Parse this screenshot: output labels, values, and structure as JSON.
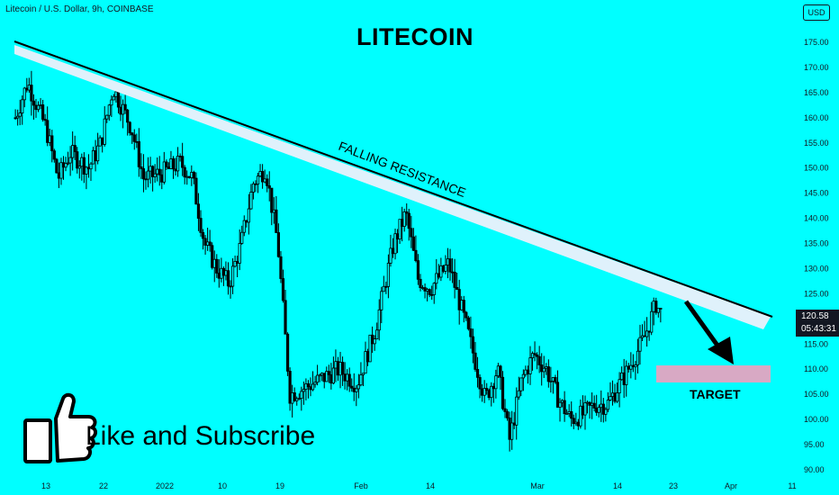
{
  "header": {
    "symbol": "Litecoin / U.S. Dollar, 9h, COINBASE",
    "currency": "USD"
  },
  "title": "LITECOIN",
  "cta": "Like and Subscribe",
  "annotations": {
    "resistance": "FALLING RESISTANCE",
    "target": "TARGET"
  },
  "price_tag": {
    "price": "120.58",
    "countdown": "05:43:31"
  },
  "colors": {
    "background": "#00ffff",
    "candle": "#000000",
    "resistance_band": "#dff1fb",
    "target_box": "#d8a9c4",
    "axis_text": "#131722"
  },
  "chart_data": {
    "type": "candlestick",
    "title": "LITECOIN",
    "y_axis": {
      "ticks": [
        175,
        170,
        165,
        160,
        155,
        150,
        145,
        140,
        135,
        130,
        125,
        120,
        115,
        110,
        105,
        100,
        95,
        90
      ],
      "ylim": [
        88,
        178
      ],
      "position": "right"
    },
    "x_axis": {
      "ticks": [
        "13",
        "22",
        "2022",
        "10",
        "19",
        "Feb",
        "14",
        "Mar",
        "14",
        "23",
        "Apr",
        "11"
      ]
    },
    "price_path": [
      [
        "Dec 8",
        160
      ],
      [
        "Dec 10",
        167
      ],
      [
        "Dec 13",
        158
      ],
      [
        "Dec 15",
        148
      ],
      [
        "Dec 17",
        153
      ],
      [
        "Dec 20",
        150
      ],
      [
        "Dec 22",
        155
      ],
      [
        "Dec 24",
        166
      ],
      [
        "Dec 27",
        158
      ],
      [
        "Dec 29",
        148
      ],
      [
        "Jan 1",
        149
      ],
      [
        "Jan 4",
        151
      ],
      [
        "Jan 6",
        148
      ],
      [
        "Jan 8",
        135
      ],
      [
        "Jan 10",
        130
      ],
      [
        "Jan 12",
        127
      ],
      [
        "Jan 14",
        135
      ],
      [
        "Jan 16",
        147
      ],
      [
        "Jan 18",
        150
      ],
      [
        "Jan 20",
        135
      ],
      [
        "Jan 22",
        105
      ],
      [
        "Jan 24",
        106
      ],
      [
        "Jan 27",
        108
      ],
      [
        "Jan 30",
        110
      ],
      [
        "Feb 2",
        107
      ],
      [
        "Feb 5",
        118
      ],
      [
        "Feb 8",
        135
      ],
      [
        "Feb 10",
        141
      ],
      [
        "Feb 12",
        128
      ],
      [
        "Feb 14",
        126
      ],
      [
        "Feb 17",
        131
      ],
      [
        "Feb 20",
        118
      ],
      [
        "Feb 23",
        104
      ],
      [
        "Feb 25",
        110
      ],
      [
        "Feb 27",
        96
      ],
      [
        "Mar 1",
        108
      ],
      [
        "Mar 3",
        113
      ],
      [
        "Mar 5",
        110
      ],
      [
        "Mar 7",
        104
      ],
      [
        "Mar 9",
        100
      ],
      [
        "Mar 11",
        101
      ],
      [
        "Mar 13",
        103
      ],
      [
        "Mar 15",
        103
      ],
      [
        "Mar 18",
        109
      ],
      [
        "Mar 21",
        116
      ],
      [
        "Mar 23",
        123
      ],
      [
        "Mar 24",
        120.58
      ]
    ],
    "resistance_line": {
      "from": [
        "Dec 6",
        175
      ],
      "to": [
        "Apr 13",
        120
      ],
      "label": "FALLING RESISTANCE"
    },
    "target_zone": {
      "from": "Mar 23",
      "to": "Apr 13",
      "low": 107.6,
      "high": 110.8,
      "label": "TARGET"
    },
    "last_price": 120.58
  }
}
